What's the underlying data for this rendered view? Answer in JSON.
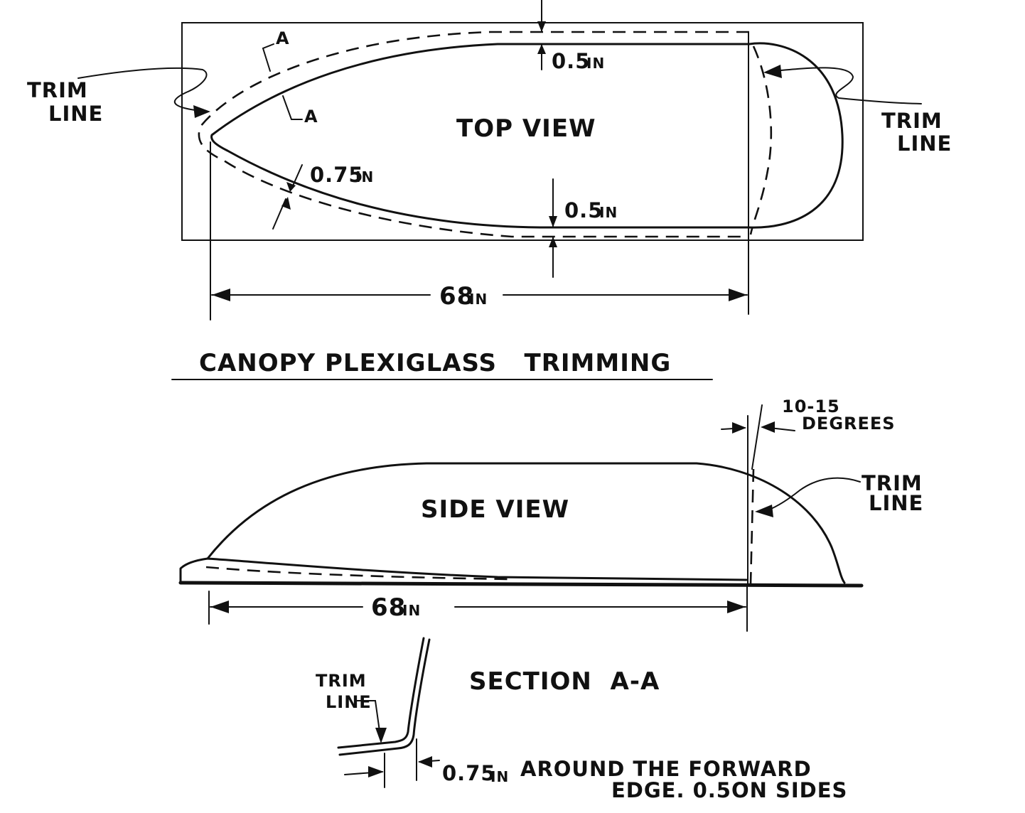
{
  "top_view": {
    "title": "TOP VIEW",
    "trim_line_left": [
      "TRIM",
      "LINE"
    ],
    "trim_line_right": [
      "TRIM",
      "LINE"
    ],
    "section_mark_top": "A",
    "section_mark_bottom": "A",
    "dim_top_offset": "0.5",
    "dim_top_offset_unit": "IN",
    "dim_bottom_offset": "0.5",
    "dim_bottom_offset_unit": "IN",
    "dim_forward_offset": "0.75",
    "dim_forward_offset_unit": "IN",
    "dim_length": "68",
    "dim_length_unit": "IN"
  },
  "heading": "CANOPY PLEXIGLASS   TRIMMING",
  "side_view": {
    "title": "SIDE VIEW",
    "angle_label": [
      "10-15",
      "DEGREES"
    ],
    "trim_line": [
      "TRIM",
      "LINE"
    ],
    "dim_length": "68",
    "dim_length_unit": "IN"
  },
  "section_aa": {
    "title": "SECTION  A-A",
    "trim_line": [
      "TRIM",
      "LINE"
    ],
    "dim_value": "0.75",
    "dim_unit": "IN",
    "note_line1": "AROUND THE FORWARD",
    "note_line2": "EDGE. 0.5ON SIDES"
  }
}
